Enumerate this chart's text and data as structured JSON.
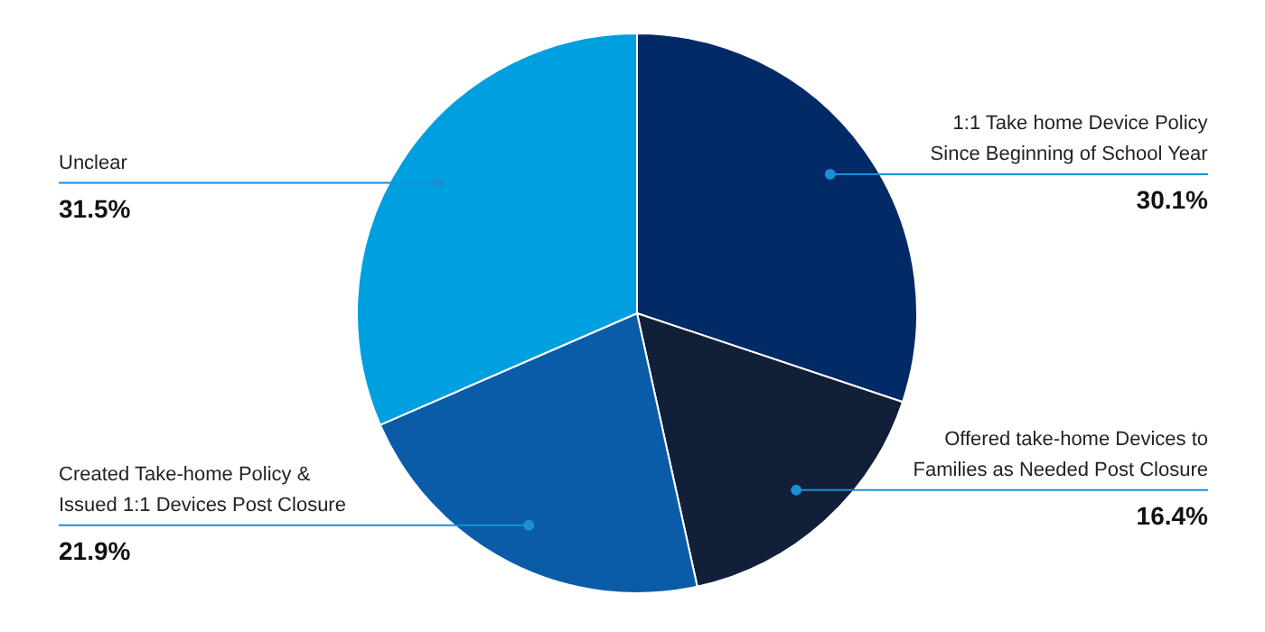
{
  "chart_data": {
    "type": "pie",
    "categories": [
      "1:1 Take home Device Policy\nSince Beginning of School Year",
      "Offered take-home Devices to\nFamilies as Needed Post Closure",
      "Created Take-home Policy &\nIssued 1:1 Devices Post Closure",
      "Unclear"
    ],
    "values": [
      30.1,
      16.4,
      21.9,
      31.5
    ],
    "colors": [
      "#022a66",
      "#121f38",
      "#0a5ca8",
      "#009fe0"
    ],
    "value_labels": [
      "30.1%",
      "16.4%",
      "21.9%",
      "31.5%"
    ]
  }
}
